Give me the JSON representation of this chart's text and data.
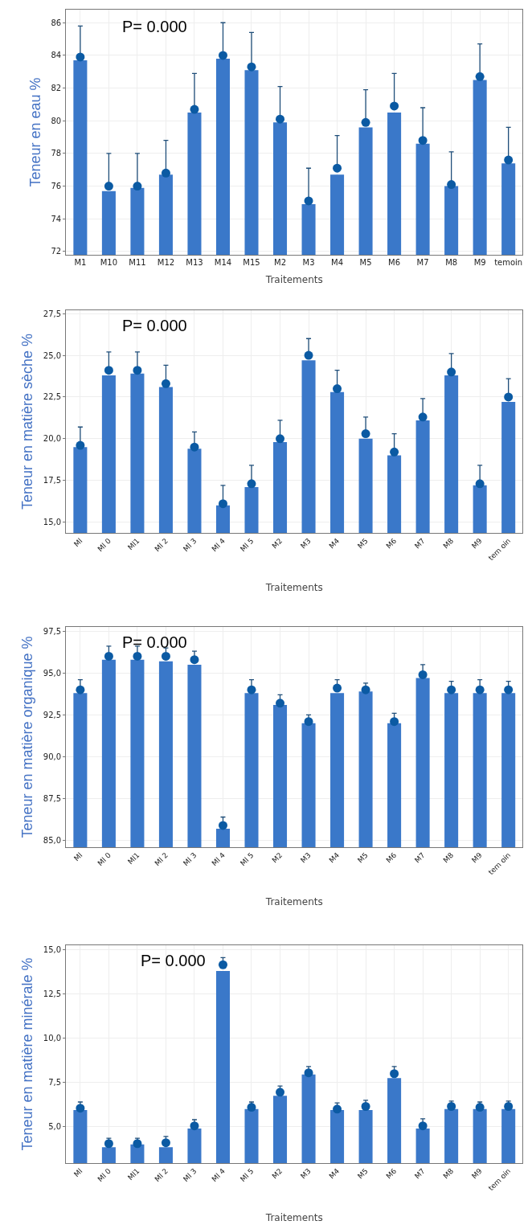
{
  "chart_data": [
    {
      "type": "bar",
      "xlabel": "Traitements",
      "ylabel": "Teneur en eau %",
      "annotations": [
        "P= 0.000"
      ],
      "grid": true,
      "marker": "circle",
      "categories": [
        "M1",
        "M10",
        "M11",
        "M12",
        "M13",
        "M14",
        "M15",
        "M2",
        "M3",
        "M4",
        "M5",
        "M6",
        "M7",
        "M8",
        "M9",
        "temoin"
      ],
      "ylim": [
        71.8,
        86.8
      ],
      "yticks": [
        72,
        74,
        76,
        78,
        80,
        82,
        84,
        86
      ],
      "series": [
        {
          "color": "#3a78c9",
          "values": [
            83.7,
            75.7,
            75.9,
            76.7,
            80.5,
            83.8,
            83.1,
            79.9,
            74.9,
            76.7,
            79.6,
            80.5,
            78.6,
            76.0,
            82.5,
            77.4
          ]
        },
        {
          "type": "scatter",
          "color": "#0b5aa3",
          "values": [
            83.9,
            76.0,
            76.0,
            76.8,
            80.7,
            84.0,
            83.3,
            80.1,
            75.1,
            77.1,
            79.9,
            80.9,
            78.8,
            76.1,
            82.7,
            77.6
          ],
          "errors": [
            [
              83.9,
              85.8
            ],
            [
              76.0,
              78.0
            ],
            [
              76.0,
              78.0
            ],
            [
              76.8,
              78.8
            ],
            [
              80.7,
              82.9
            ],
            [
              84.0,
              86.0
            ],
            [
              83.3,
              85.4
            ],
            [
              80.1,
              82.1
            ],
            [
              75.1,
              77.1
            ],
            [
              77.1,
              79.1
            ],
            [
              79.9,
              81.9
            ],
            [
              80.9,
              82.9
            ],
            [
              78.8,
              80.8
            ],
            [
              76.1,
              78.1
            ],
            [
              82.7,
              84.7
            ],
            [
              77.6,
              79.6
            ]
          ]
        }
      ]
    },
    {
      "type": "bar",
      "xlabel": "Traitements",
      "ylabel": "Teneur en matière sèche %",
      "annotations": [
        "P= 0.000"
      ],
      "grid": true,
      "marker": "circle",
      "categories": [
        "Ml",
        "Ml 0",
        "Ml1",
        "Ml 2",
        "Ml 3",
        "Ml 4",
        "Ml 5",
        "M2",
        "M3",
        "M4",
        "M5",
        "M6",
        "M7",
        "M8",
        "M9",
        "tem oin"
      ],
      "ylim": [
        14.35,
        27.7
      ],
      "yticks": [
        {
          "value": 15,
          "label": "15,0"
        },
        {
          "value": 17.5,
          "label": "17,5"
        },
        {
          "value": 20,
          "label": "20,0"
        },
        {
          "value": 22.5,
          "label": "22,5"
        },
        {
          "value": 25,
          "label": "25,0"
        },
        {
          "value": 27.5,
          "label": "27,5"
        }
      ],
      "series": [
        {
          "color": "#3a78c9",
          "values": [
            19.5,
            23.8,
            23.9,
            23.1,
            19.4,
            16.0,
            17.1,
            19.8,
            24.7,
            22.8,
            20.0,
            19.0,
            21.1,
            23.8,
            17.2,
            22.2
          ]
        },
        {
          "type": "scatter",
          "color": "#0b5aa3",
          "values": [
            19.6,
            24.1,
            24.1,
            23.3,
            19.5,
            16.1,
            17.3,
            20.0,
            25.0,
            23.0,
            20.3,
            19.2,
            21.3,
            24.0,
            17.3,
            22.5
          ],
          "errors": [
            [
              19.6,
              20.7
            ],
            [
              24.1,
              25.2
            ],
            [
              24.1,
              25.2
            ],
            [
              23.3,
              24.4
            ],
            [
              19.5,
              20.4
            ],
            [
              16.1,
              17.2
            ],
            [
              17.3,
              18.4
            ],
            [
              20.0,
              21.1
            ],
            [
              25.0,
              26.0
            ],
            [
              23.0,
              24.1
            ],
            [
              20.3,
              21.3
            ],
            [
              19.2,
              20.3
            ],
            [
              21.3,
              22.4
            ],
            [
              24.0,
              25.1
            ],
            [
              17.3,
              18.4
            ],
            [
              22.5,
              23.6
            ]
          ]
        }
      ]
    },
    {
      "type": "bar",
      "xlabel": "Traitements",
      "ylabel": "Teneur en matière organique %",
      "annotations": [
        "P= 0.000"
      ],
      "grid": true,
      "marker": "circle",
      "categories": [
        "Ml",
        "Ml 0",
        "Ml1",
        "Ml 2",
        "Ml 3",
        "Ml 4",
        "Ml 5",
        "M2",
        "M3",
        "M4",
        "M5",
        "M6",
        "M7",
        "M8",
        "M9",
        "tem oin"
      ],
      "ylim": [
        84.6,
        97.75
      ],
      "yticks": [
        {
          "value": 85,
          "label": "85,0"
        },
        {
          "value": 87.5,
          "label": "87,5"
        },
        {
          "value": 90,
          "label": "90,0"
        },
        {
          "value": 92.5,
          "label": "92,5"
        },
        {
          "value": 95,
          "label": "95,0"
        },
        {
          "value": 97.5,
          "label": "97,5"
        }
      ],
      "series": [
        {
          "color": "#3a78c9",
          "values": [
            93.8,
            95.8,
            95.8,
            95.7,
            95.5,
            85.7,
            93.8,
            93.1,
            92.0,
            93.8,
            93.9,
            92.0,
            94.7,
            93.8,
            93.8,
            93.8
          ]
        },
        {
          "type": "scatter",
          "color": "#0b5aa3",
          "values": [
            94.0,
            96.0,
            96.0,
            96.0,
            95.8,
            85.9,
            94.0,
            93.2,
            92.1,
            94.1,
            94.0,
            92.1,
            94.9,
            94.0,
            94.0,
            94.0
          ],
          "errors": [
            [
              94.0,
              94.6
            ],
            [
              96.0,
              96.6
            ],
            [
              96.0,
              96.6
            ],
            [
              96.0,
              96.5
            ],
            [
              95.8,
              96.3
            ],
            [
              85.9,
              86.4
            ],
            [
              94.0,
              94.6
            ],
            [
              93.2,
              93.7
            ],
            [
              92.1,
              92.5
            ],
            [
              94.1,
              94.6
            ],
            [
              94.0,
              94.4
            ],
            [
              92.1,
              92.6
            ],
            [
              94.9,
              95.5
            ],
            [
              94.0,
              94.5
            ],
            [
              94.0,
              94.6
            ],
            [
              94.0,
              94.5
            ]
          ]
        }
      ]
    },
    {
      "type": "bar",
      "xlabel": "Traitements",
      "ylabel": "Teneur en matière minérale %",
      "annotations": [
        "P= 0.000"
      ],
      "grid": true,
      "marker": "circle",
      "categories": [
        "Ml",
        "Ml 0",
        "Ml1",
        "Ml 2",
        "Ml 3",
        "Ml 4",
        "Ml 5",
        "M2",
        "M3",
        "M4",
        "M5",
        "M6",
        "M7",
        "M8",
        "M9",
        "tem oin"
      ],
      "ylim": [
        2.95,
        15.25
      ],
      "yticks": [
        {
          "value": 5,
          "label": "5,0"
        },
        {
          "value": 7.5,
          "label": "7,5"
        },
        {
          "value": 10,
          "label": "10,0"
        },
        {
          "value": 12.5,
          "label": "12,5"
        },
        {
          "value": 15,
          "label": "15,0"
        }
      ],
      "series": [
        {
          "color": "#3a78c9",
          "values": [
            5.95,
            3.85,
            4.0,
            3.85,
            4.9,
            13.8,
            6.0,
            6.75,
            7.95,
            5.95,
            5.95,
            7.75,
            4.9,
            6.0,
            6.0,
            6.0
          ]
        },
        {
          "type": "scatter",
          "color": "#0b5aa3",
          "values": [
            6.05,
            4.05,
            4.05,
            4.1,
            5.05,
            14.15,
            6.1,
            6.95,
            8.05,
            6.0,
            6.15,
            8.0,
            5.05,
            6.15,
            6.1,
            6.15
          ],
          "errors": [
            [
              6.05,
              6.4
            ],
            [
              4.05,
              4.35
            ],
            [
              4.05,
              4.35
            ],
            [
              4.1,
              4.45
            ],
            [
              5.05,
              5.4
            ],
            [
              14.15,
              14.55
            ],
            [
              6.1,
              6.4
            ],
            [
              6.95,
              7.3
            ],
            [
              8.05,
              8.4
            ],
            [
              6.0,
              6.35
            ],
            [
              6.15,
              6.5
            ],
            [
              8.0,
              8.4
            ],
            [
              5.05,
              5.45
            ],
            [
              6.15,
              6.45
            ],
            [
              6.1,
              6.4
            ],
            [
              6.15,
              6.45
            ]
          ]
        }
      ]
    }
  ]
}
